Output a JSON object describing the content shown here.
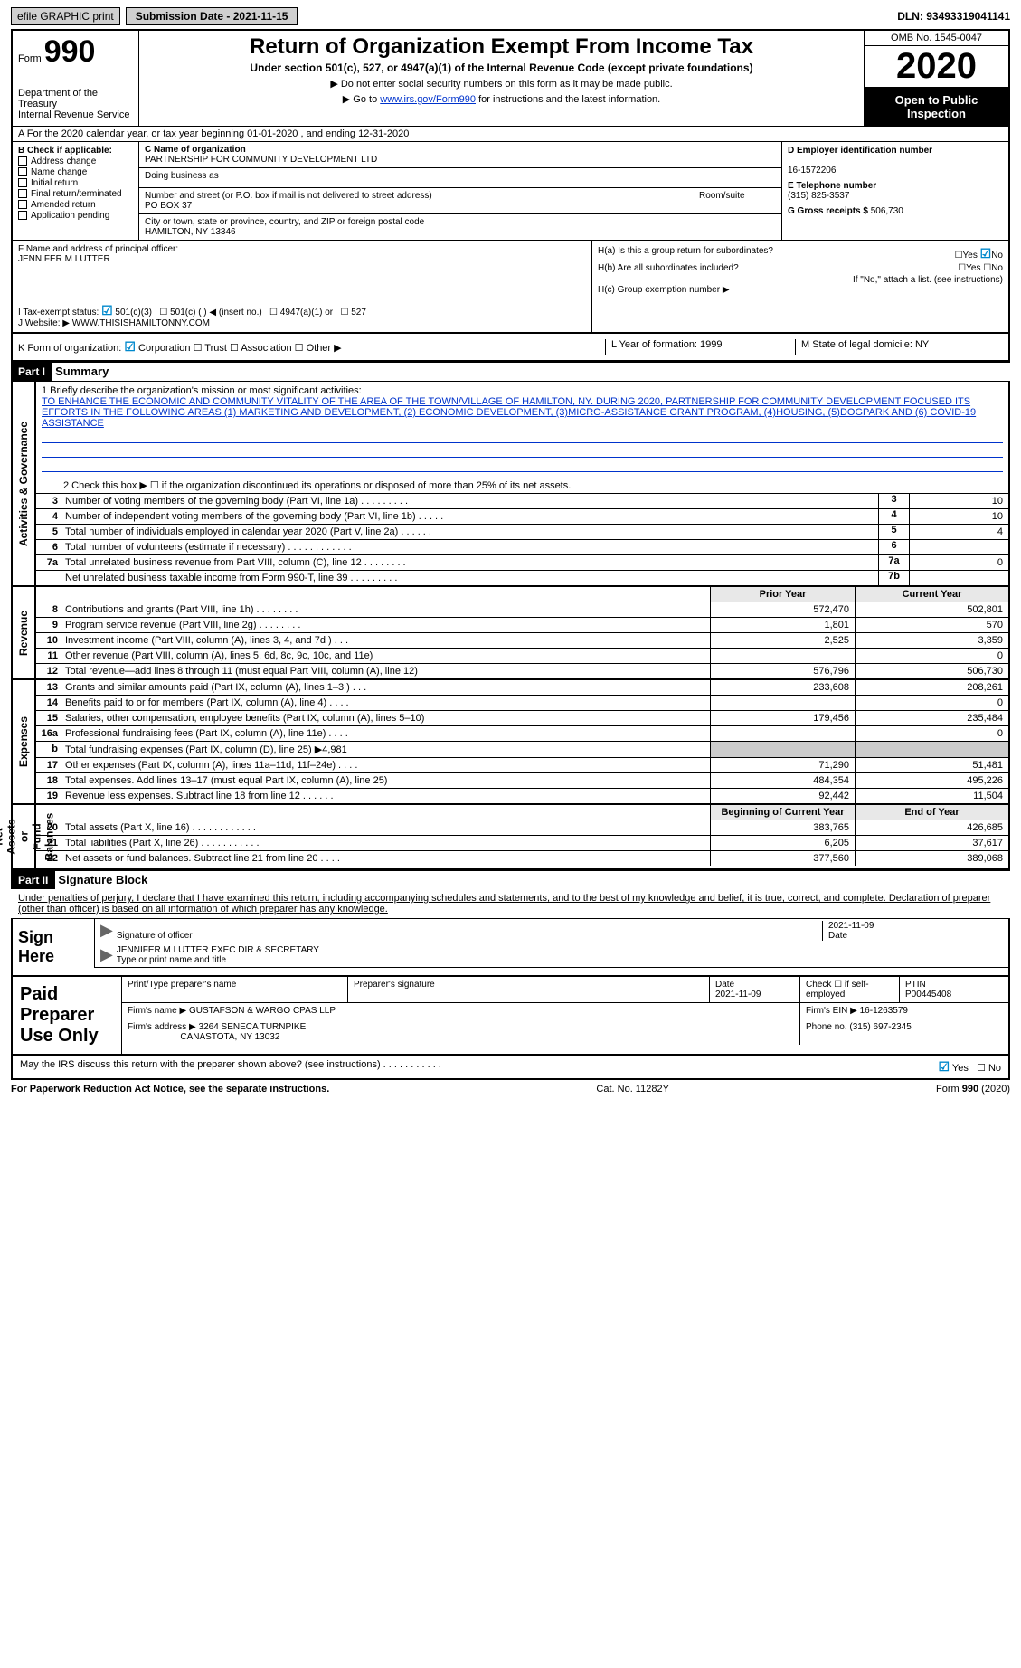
{
  "top": {
    "efile": "efile GRAPHIC print",
    "subdate_label": "Submission Date - 2021-11-15",
    "dln": "DLN: 93493319041141"
  },
  "header": {
    "form_label": "Form",
    "form_num": "990",
    "title": "Return of Organization Exempt From Income Tax",
    "sub1": "Under section 501(c), 527, or 4947(a)(1) of the Internal Revenue Code (except private foundations)",
    "sub2": "▶ Do not enter social security numbers on this form as it may be made public.",
    "sub3_pre": "▶ Go to ",
    "sub3_link": "www.irs.gov/Form990",
    "sub3_post": " for instructions and the latest information.",
    "dept": "Department of the Treasury\nInternal Revenue Service",
    "omb": "OMB No. 1545-0047",
    "year": "2020",
    "otp": "Open to Public Inspection"
  },
  "row_a": "A For the 2020 calendar year, or tax year beginning 01-01-2020   , and ending 12-31-2020",
  "sec_b": {
    "hdr": "B Check if applicable:",
    "items": [
      "Address change",
      "Name change",
      "Initial return",
      "Final return/terminated",
      "Amended return",
      "Application pending"
    ]
  },
  "sec_c": {
    "c_label": "C Name of organization",
    "c_name": "PARTNERSHIP FOR COMMUNITY DEVELOPMENT LTD",
    "dba_label": "Doing business as",
    "dba": "",
    "addr_label": "Number and street (or P.O. box if mail is not delivered to street address)",
    "addr": "PO BOX 37",
    "room_label": "Room/suite",
    "city_label": "City or town, state or province, country, and ZIP or foreign postal code",
    "city": "HAMILTON, NY  13346"
  },
  "sec_d": {
    "ein_label": "D Employer identification number",
    "ein": "16-1572206",
    "tel_label": "E Telephone number",
    "tel": "(315) 825-3537",
    "gross_label": "G Gross receipts $",
    "gross": "506,730"
  },
  "sec_f": {
    "label": "F Name and address of principal officer:",
    "name": "JENNIFER M LUTTER"
  },
  "sec_h": {
    "ha": "H(a)  Is this a group return for subordinates?",
    "ha_yes": "Yes",
    "ha_no": "No",
    "hb": "H(b)  Are all subordinates included?",
    "hb_note": "If \"No,\" attach a list. (see instructions)",
    "hc": "H(c)  Group exemption number ▶"
  },
  "sec_i": {
    "label": "I   Tax-exempt status:",
    "c3": "501(c)(3)",
    "c": "501(c) (  ) ◀ (insert no.)",
    "a1": "4947(a)(1) or",
    "s527": "527"
  },
  "sec_j": {
    "label": "J  Website: ▶",
    "val": "WWW.THISISHAMILTONNY.COM"
  },
  "sec_k": {
    "label": "K Form of organization:",
    "corp": "Corporation",
    "trust": "Trust",
    "assoc": "Association",
    "other": "Other ▶",
    "l": "L Year of formation: 1999",
    "m": "M State of legal domicile: NY"
  },
  "part1": {
    "label": "Part I",
    "title": "Summary",
    "l1_label": "1  Briefly describe the organization's mission or most significant activities:",
    "l1_text": "TO ENHANCE THE ECONOMIC AND COMMUNITY VITALITY OF THE AREA OF THE TOWN/VILLAGE OF HAMILTON, NY. DURING 2020, PARTNERSHIP FOR COMMUNITY DEVELOPMENT FOCUSED ITS EFFORTS IN THE FOLLOWING AREAS (1) MARKETING AND DEVELOPMENT, (2) ECONOMIC DEVELOPMENT, (3)MICRO-ASSISTANCE GRANT PROGRAM, (4)HOUSING, (5)DOGPARK AND (6) COVID-19 ASSISTANCE",
    "l2": "2   Check this box ▶ ☐ if the organization discontinued its operations or disposed of more than 25% of its net assets."
  },
  "gov_rows": [
    {
      "n": "3",
      "d": "Number of voting members of the governing body (Part VI, line 1a)  .    .    .    .    .    .    .    .    .",
      "box": "3",
      "v": "10"
    },
    {
      "n": "4",
      "d": "Number of independent voting members of the governing body (Part VI, line 1b)   .    .    .    .    .",
      "box": "4",
      "v": "10"
    },
    {
      "n": "5",
      "d": "Total number of individuals employed in calendar year 2020 (Part V, line 2a)  .    .    .    .    .    .",
      "box": "5",
      "v": "4"
    },
    {
      "n": "6",
      "d": "Total number of volunteers (estimate if necessary)    .    .    .    .    .    .    .    .    .    .    .    .",
      "box": "6",
      "v": ""
    },
    {
      "n": "7a",
      "d": "Total unrelated business revenue from Part VIII, column (C), line 12   .    .    .    .    .    .    .    .",
      "box": "7a",
      "v": "0"
    },
    {
      "n": "",
      "d": "Net unrelated business taxable income from Form 990-T, line 39   .    .    .    .    .    .    .    .    .",
      "box": "7b",
      "v": ""
    }
  ],
  "rev_hdr": {
    "prior": "Prior Year",
    "curr": "Current Year"
  },
  "rev_rows": [
    {
      "n": "8",
      "d": "Contributions and grants (Part VIII, line 1h)   .    .    .    .    .    .    .    .",
      "p": "572,470",
      "c": "502,801"
    },
    {
      "n": "9",
      "d": "Program service revenue (Part VIII, line 2g)   .    .    .    .    .    .    .    .",
      "p": "1,801",
      "c": "570"
    },
    {
      "n": "10",
      "d": "Investment income (Part VIII, column (A), lines 3, 4, and 7d )    .    .    .",
      "p": "2,525",
      "c": "3,359"
    },
    {
      "n": "11",
      "d": "Other revenue (Part VIII, column (A), lines 5, 6d, 8c, 9c, 10c, and 11e)",
      "p": "",
      "c": "0"
    },
    {
      "n": "12",
      "d": "Total revenue—add lines 8 through 11 (must equal Part VIII, column (A), line 12)",
      "p": "576,796",
      "c": "506,730"
    }
  ],
  "exp_rows": [
    {
      "n": "13",
      "d": "Grants and similar amounts paid (Part IX, column (A), lines 1–3 )   .    .    .",
      "p": "233,608",
      "c": "208,261"
    },
    {
      "n": "14",
      "d": "Benefits paid to or for members (Part IX, column (A), line 4)   .    .    .    .",
      "p": "",
      "c": "0"
    },
    {
      "n": "15",
      "d": "Salaries, other compensation, employee benefits (Part IX, column (A), lines 5–10)",
      "p": "179,456",
      "c": "235,484"
    },
    {
      "n": "16a",
      "d": "Professional fundraising fees (Part IX, column (A), line 11e)   .    .    .    .",
      "p": "",
      "c": "0"
    },
    {
      "n": "b",
      "d": "Total fundraising expenses (Part IX, column (D), line 25) ▶4,981",
      "p": "",
      "c": ""
    },
    {
      "n": "17",
      "d": "Other expenses (Part IX, column (A), lines 11a–11d, 11f–24e)   .    .    .    .",
      "p": "71,290",
      "c": "51,481"
    },
    {
      "n": "18",
      "d": "Total expenses. Add lines 13–17 (must equal Part IX, column (A), line 25)",
      "p": "484,354",
      "c": "495,226"
    },
    {
      "n": "19",
      "d": "Revenue less expenses. Subtract line 18 from line 12  .    .    .    .    .    .",
      "p": "92,442",
      "c": "11,504"
    }
  ],
  "net_hdr": {
    "b": "Beginning of Current Year",
    "e": "End of Year"
  },
  "net_rows": [
    {
      "n": "20",
      "d": "Total assets (Part X, line 16)   .    .    .    .    .    .    .    .    .    .    .    .",
      "p": "383,765",
      "c": "426,685"
    },
    {
      "n": "21",
      "d": "Total liabilities (Part X, line 26)    .    .    .    .    .    .    .    .    .    .    .",
      "p": "6,205",
      "c": "37,617"
    },
    {
      "n": "22",
      "d": "Net assets or fund balances. Subtract line 21 from line 20    .    .    .    .",
      "p": "377,560",
      "c": "389,068"
    }
  ],
  "side": {
    "gov": "Activities & Governance",
    "rev": "Revenue",
    "exp": "Expenses",
    "net": "Net Assets or\nFund Balances"
  },
  "part2": {
    "label": "Part II",
    "title": "Signature Block",
    "decl": "Under penalties of perjury, I declare that I have examined this return, including accompanying schedules and statements, and to the best of my knowledge and belief, it is true, correct, and complete. Declaration of preparer (other than officer) is based on all information of which preparer has any knowledge."
  },
  "sign": {
    "label": "Sign Here",
    "sig_of": "Signature of officer",
    "date": "2021-11-09",
    "name": "JENNIFER M LUTTER  EXEC DIR & SECRETARY",
    "name_label": "Type or print name and title"
  },
  "paid": {
    "label": "Paid Preparer Use Only",
    "h1": "Print/Type preparer's name",
    "h2": "Preparer's signature",
    "h3": "Date",
    "h4": "Check ☐ if self-employed",
    "h5": "PTIN",
    "date": "2021-11-09",
    "ptin": "P00445408",
    "firm_label": "Firm's name   ▶",
    "firm": "GUSTAFSON & WARGO CPAS LLP",
    "ein_label": "Firm's EIN ▶",
    "ein": "16-1263579",
    "addr_label": "Firm's address ▶",
    "addr1": "3264 SENECA TURNPIKE",
    "addr2": "CANASTOTA, NY  13032",
    "phone_label": "Phone no.",
    "phone": "(315) 697-2345"
  },
  "discuss": {
    "q": "May the IRS discuss this return with the preparer shown above? (see instructions)    .    .    .    .    .    .    .    .    .    .    .",
    "yes": "Yes",
    "no": "No"
  },
  "footer": {
    "left": "For Paperwork Reduction Act Notice, see the separate instructions.",
    "mid": "Cat. No. 11282Y",
    "right": "Form 990 (2020)"
  }
}
